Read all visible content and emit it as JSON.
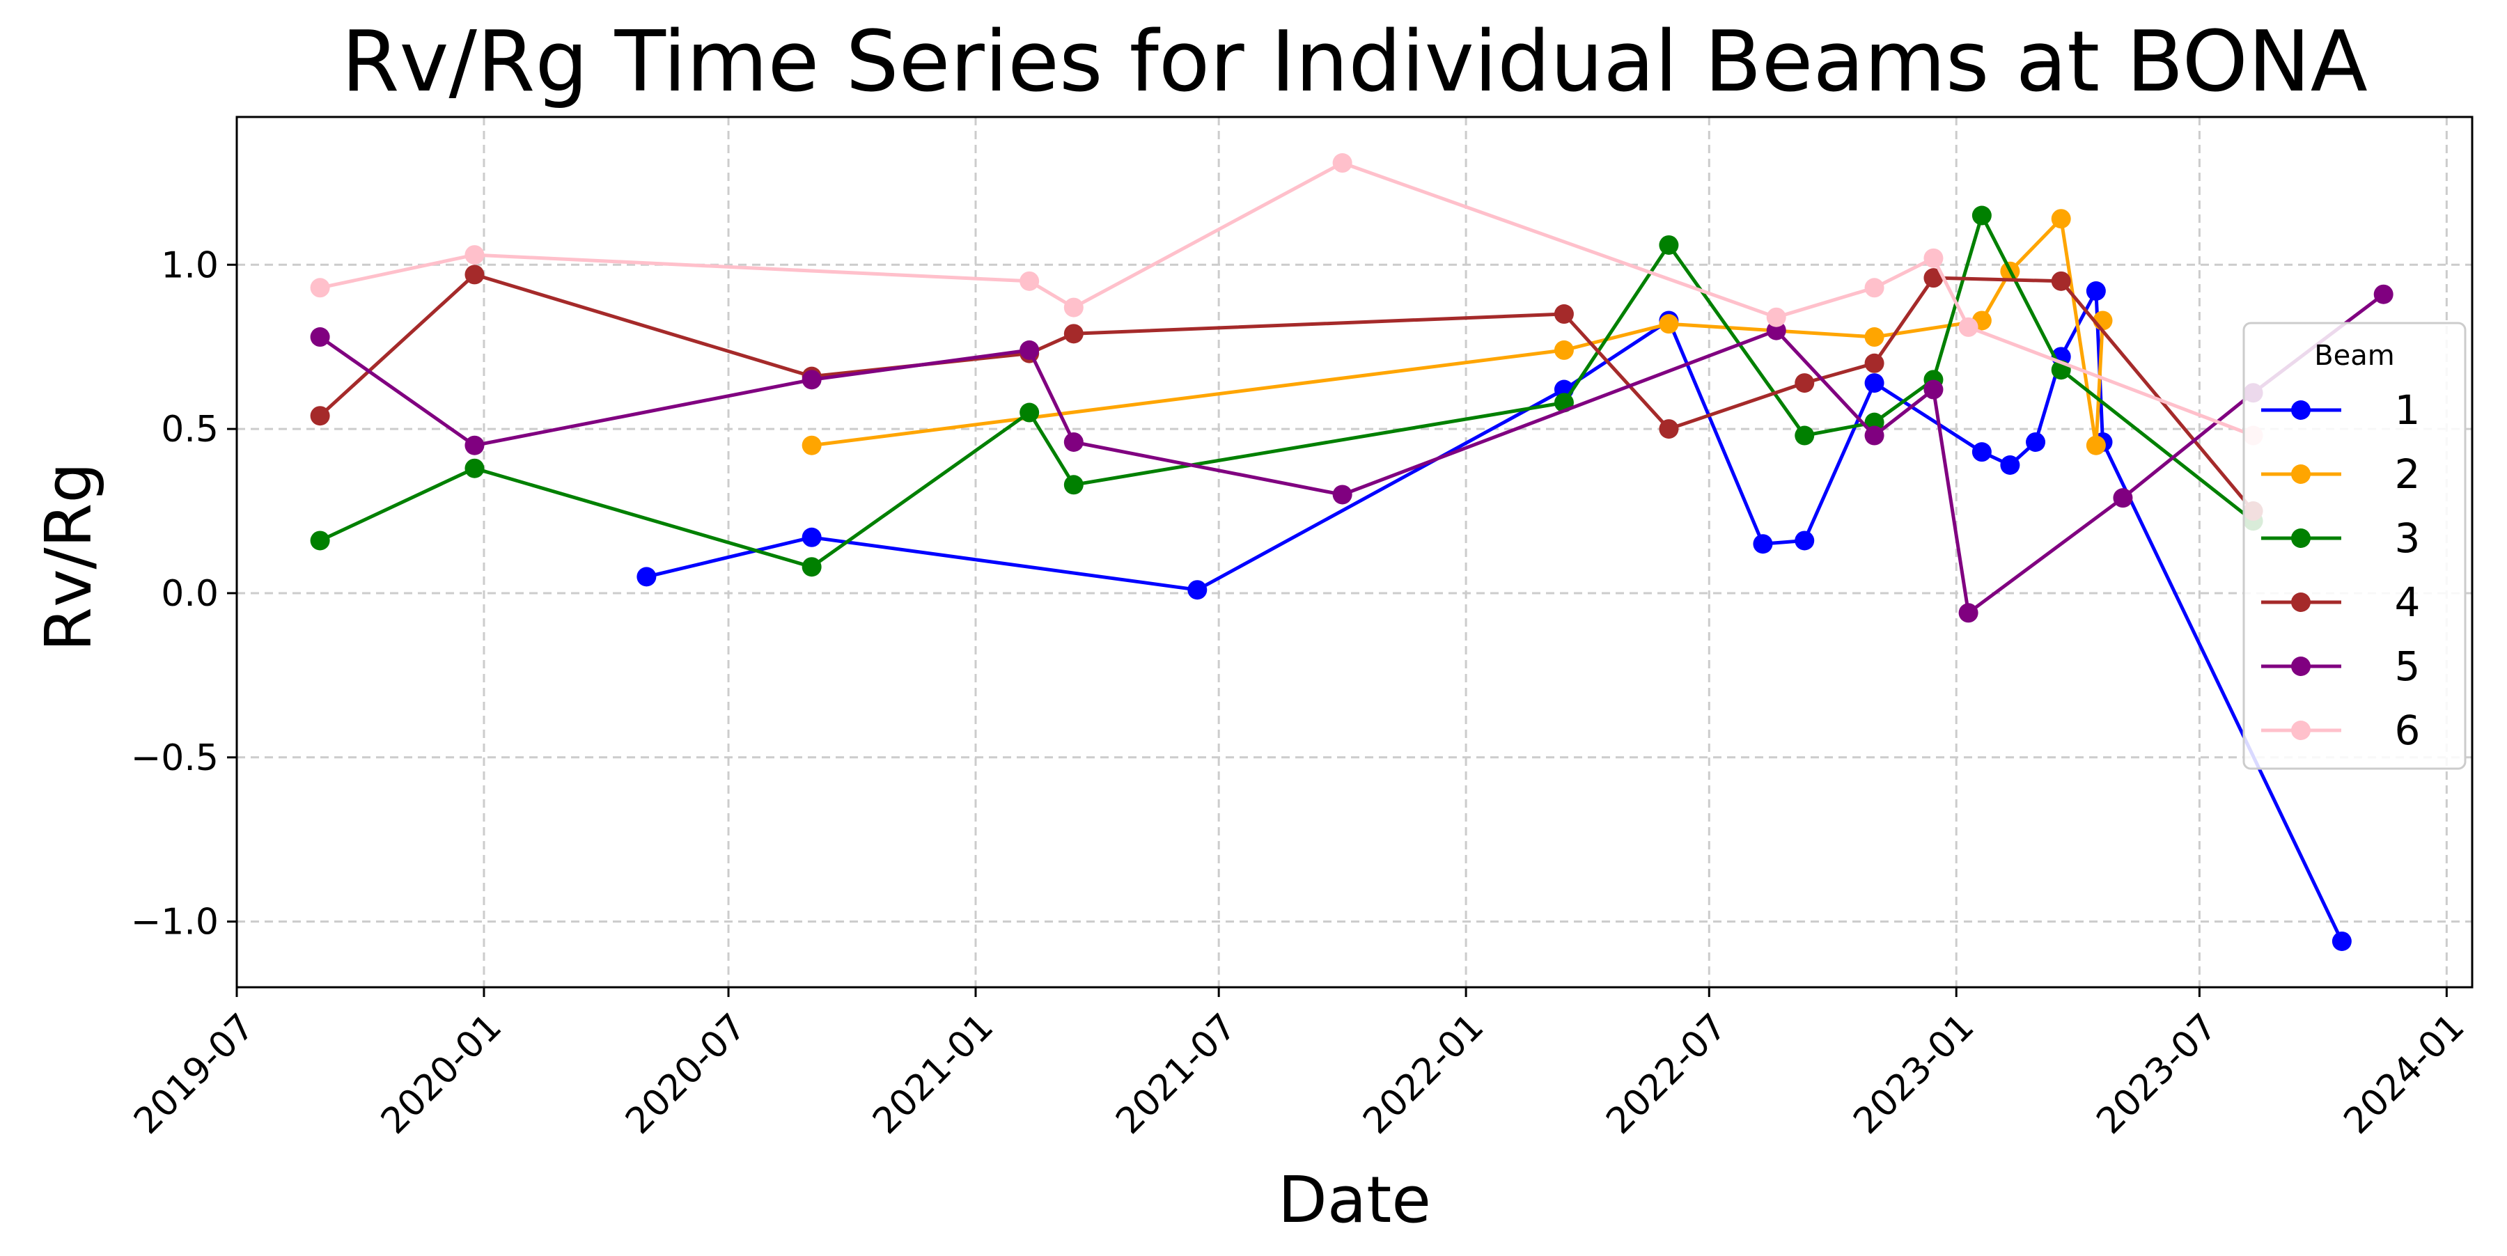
{
  "chart_data": {
    "type": "line",
    "title": "Rv/Rg Time Series for Individual Beams at BONA",
    "xlabel": "Date",
    "ylabel": "Rv/Rg",
    "xlim": [
      "2019-07-01",
      "2024-01-20"
    ],
    "ylim": [
      -1.2,
      1.45
    ],
    "x_ticks": [
      "2019-07",
      "2020-01",
      "2020-07",
      "2021-01",
      "2021-07",
      "2022-01",
      "2022-07",
      "2023-01",
      "2023-07",
      "2024-01"
    ],
    "y_ticks": [
      1.0,
      0.5,
      0.0,
      -0.5,
      -1.0
    ],
    "y_tick_labels": [
      "1.0",
      "0.5",
      "0.0",
      "−0.5",
      "−1.0"
    ],
    "grid": true,
    "legend": {
      "title": "Beam",
      "placement": "right"
    },
    "series": [
      {
        "name": "1",
        "color": "#0000ff",
        "points": [
          [
            "2020-05-01",
            0.05
          ],
          [
            "2020-09-01",
            0.17
          ],
          [
            "2021-06-15",
            0.01
          ],
          [
            "2022-03-15",
            0.62
          ],
          [
            "2022-06-01",
            0.83
          ],
          [
            "2022-08-10",
            0.15
          ],
          [
            "2022-09-10",
            0.16
          ],
          [
            "2022-11-01",
            0.64
          ],
          [
            "2023-01-20",
            0.43
          ],
          [
            "2023-02-10",
            0.39
          ],
          [
            "2023-03-01",
            0.46
          ],
          [
            "2023-03-20",
            0.72
          ],
          [
            "2023-04-15",
            0.92
          ],
          [
            "2023-04-20",
            0.46
          ],
          [
            "2023-10-15",
            -1.06
          ]
        ]
      },
      {
        "name": "2",
        "color": "#ffa500",
        "points": [
          [
            "2020-09-01",
            0.45
          ],
          [
            "2022-03-15",
            0.74
          ],
          [
            "2022-06-01",
            0.82
          ],
          [
            "2022-11-01",
            0.78
          ],
          [
            "2023-01-20",
            0.83
          ],
          [
            "2023-02-10",
            0.98
          ],
          [
            "2023-03-20",
            1.14
          ],
          [
            "2023-04-15",
            0.45
          ],
          [
            "2023-04-20",
            0.83
          ]
        ]
      },
      {
        "name": "3",
        "color": "#008000",
        "points": [
          [
            "2019-09-01",
            0.16
          ],
          [
            "2019-12-25",
            0.38
          ],
          [
            "2020-09-01",
            0.08
          ],
          [
            "2021-02-10",
            0.55
          ],
          [
            "2021-03-15",
            0.33
          ],
          [
            "2022-03-15",
            0.58
          ],
          [
            "2022-06-01",
            1.06
          ],
          [
            "2022-09-10",
            0.48
          ],
          [
            "2022-11-01",
            0.52
          ],
          [
            "2022-12-15",
            0.65
          ],
          [
            "2023-01-20",
            1.15
          ],
          [
            "2023-03-20",
            0.68
          ],
          [
            "2023-08-10",
            0.22
          ]
        ]
      },
      {
        "name": "4",
        "color": "#a52a2a",
        "points": [
          [
            "2019-09-01",
            0.54
          ],
          [
            "2019-12-25",
            0.97
          ],
          [
            "2020-09-01",
            0.66
          ],
          [
            "2021-02-10",
            0.73
          ],
          [
            "2021-03-15",
            0.79
          ],
          [
            "2022-03-15",
            0.85
          ],
          [
            "2022-06-01",
            0.5
          ],
          [
            "2022-09-10",
            0.64
          ],
          [
            "2022-11-01",
            0.7
          ],
          [
            "2022-12-15",
            0.96
          ],
          [
            "2023-03-20",
            0.95
          ],
          [
            "2023-08-10",
            0.25
          ]
        ]
      },
      {
        "name": "5",
        "color": "#800080",
        "points": [
          [
            "2019-09-01",
            0.78
          ],
          [
            "2019-12-25",
            0.45
          ],
          [
            "2020-09-01",
            0.65
          ],
          [
            "2021-02-10",
            0.74
          ],
          [
            "2021-03-15",
            0.46
          ],
          [
            "2021-10-01",
            0.3
          ],
          [
            "2022-08-20",
            0.8
          ],
          [
            "2022-11-01",
            0.48
          ],
          [
            "2022-12-15",
            0.62
          ],
          [
            "2023-01-10",
            -0.06
          ],
          [
            "2023-05-05",
            0.29
          ],
          [
            "2023-08-10",
            0.61
          ],
          [
            "2023-11-15",
            0.91
          ]
        ]
      },
      {
        "name": "6",
        "color": "#ffc0cb",
        "points": [
          [
            "2019-09-01",
            0.93
          ],
          [
            "2019-12-25",
            1.03
          ],
          [
            "2021-02-10",
            0.95
          ],
          [
            "2021-03-15",
            0.87
          ],
          [
            "2021-10-01",
            1.31
          ],
          [
            "2022-08-20",
            0.84
          ],
          [
            "2022-11-01",
            0.93
          ],
          [
            "2022-12-15",
            1.02
          ],
          [
            "2023-01-10",
            0.81
          ],
          [
            "2023-08-10",
            0.48
          ]
        ]
      }
    ]
  }
}
